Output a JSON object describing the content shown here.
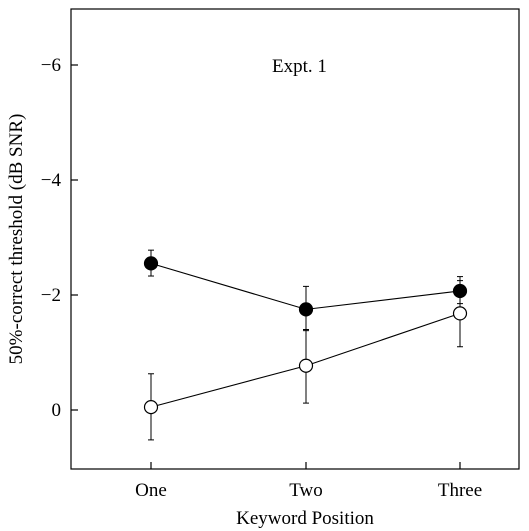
{
  "chart_data": {
    "type": "line",
    "title": "",
    "annotation": "Expt. 1",
    "xlabel": "Keyword Position",
    "ylabel": "50%-correct threshold (dB SNR)",
    "categories": [
      "One",
      "Two",
      "Three"
    ],
    "ylim": [
      0.9,
      -7.0
    ],
    "y_axis_inverted": true,
    "yticks": [
      0,
      -2,
      -4,
      -6
    ],
    "ytick_labels": [
      "0",
      "−2",
      "−4",
      "−6"
    ],
    "grid": false,
    "legend": "none",
    "series": [
      {
        "marker": "filled-circle",
        "color": "#000000",
        "values": [
          -2.55,
          -1.75,
          -2.07
        ],
        "error_low": [
          -2.33,
          -1.38,
          -1.85
        ],
        "error_high": [
          -2.78,
          -2.15,
          -2.32
        ]
      },
      {
        "marker": "open-circle",
        "color": "#000000",
        "values": [
          -0.05,
          -0.77,
          -1.68
        ],
        "error_low": [
          0.52,
          -0.12,
          -1.1
        ],
        "error_high": [
          -0.63,
          -1.4,
          -2.25
        ]
      }
    ]
  }
}
